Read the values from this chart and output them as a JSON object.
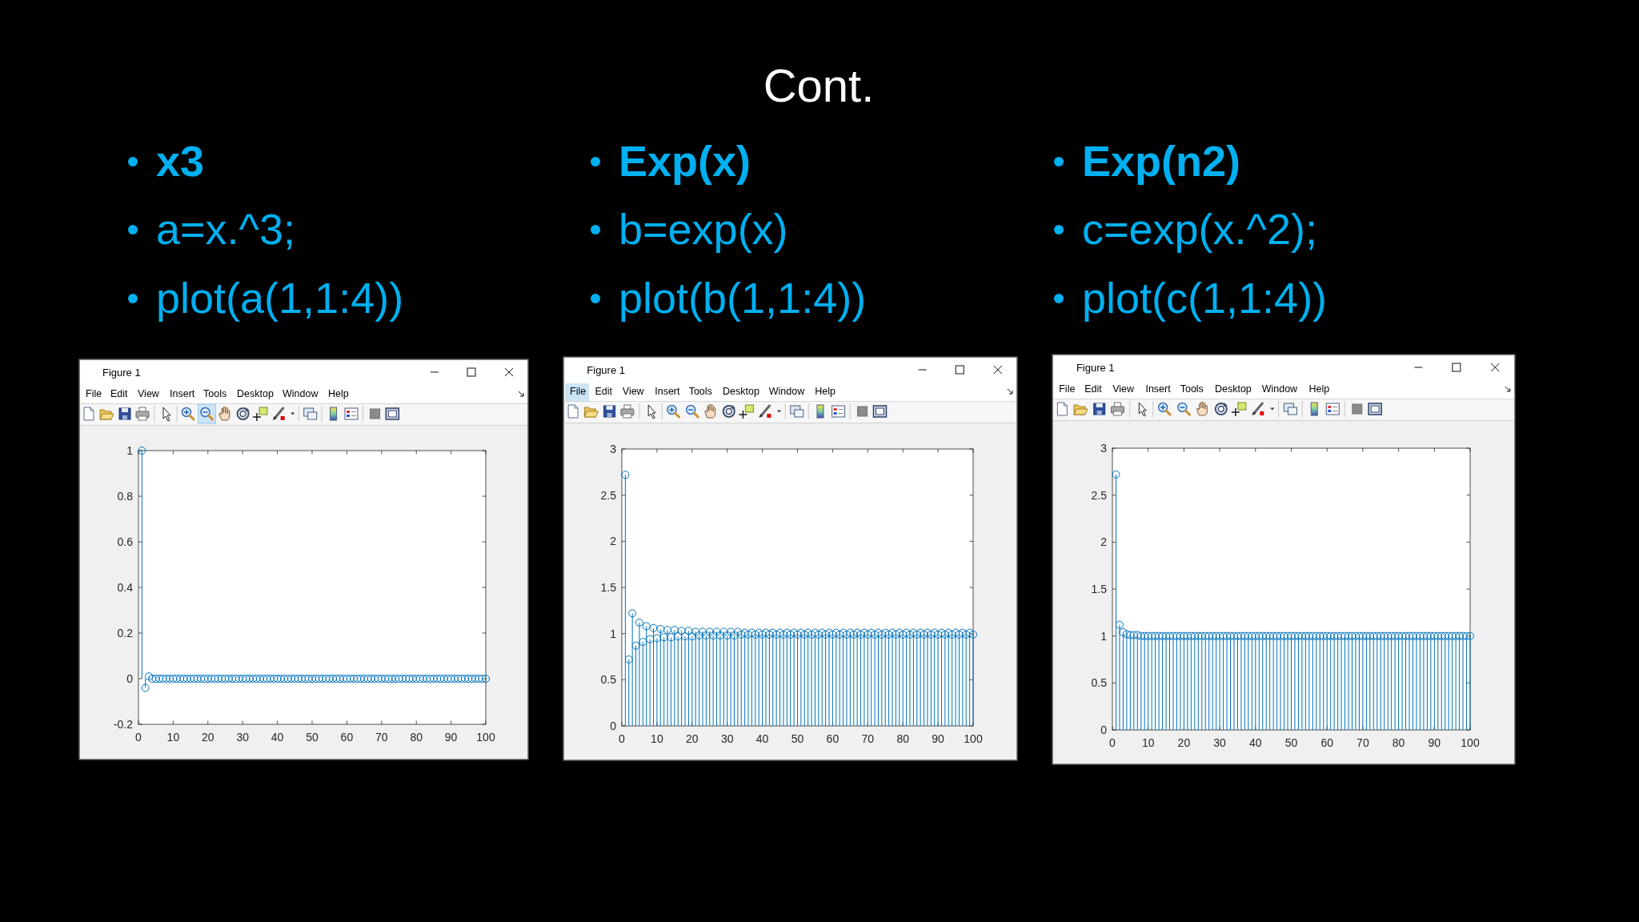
{
  "chart_data": [
    {
      "type": "other",
      "title": "Cont."
    },
    {
      "type": "lollipop",
      "title": "x3",
      "subtitle": "a=x.^3;",
      "annotations": [
        "plot(a(1,1:4))",
        "Figure 1",
        "File",
        "Edit",
        "View",
        "Insert",
        "Tools",
        "Desktop",
        "Window",
        "Help"
      ],
      "color": "#0072bd",
      "marker": "circle",
      "xlim": [
        0,
        100
      ],
      "xticks": [
        0,
        10,
        20,
        30,
        40,
        50,
        60,
        70,
        80,
        90,
        100
      ],
      "ylim": [
        -0.2,
        1
      ],
      "yticks": [
        -0.2,
        0,
        0.2,
        0.4,
        0.6,
        0.8,
        1
      ],
      "x": [
        1,
        2,
        3,
        4,
        5,
        6,
        7,
        8,
        9,
        10,
        11,
        12,
        13,
        14,
        15,
        16,
        17,
        18,
        19,
        20,
        21,
        22,
        23,
        24,
        25,
        26,
        27,
        28,
        29,
        30,
        31,
        32,
        33,
        34,
        35,
        36,
        37,
        38,
        39,
        40,
        41,
        42,
        43,
        44,
        45,
        46,
        47,
        48,
        49,
        50,
        51,
        52,
        53,
        54,
        55,
        56,
        57,
        58,
        59,
        60,
        61,
        62,
        63,
        64,
        65,
        66,
        67,
        68,
        69,
        70,
        71,
        72,
        73,
        74,
        75,
        76,
        77,
        78,
        79,
        80,
        81,
        82,
        83,
        84,
        85,
        86,
        87,
        88,
        89,
        90,
        91,
        92,
        93,
        94,
        95,
        96,
        97,
        98,
        99,
        100
      ],
      "values": [
        1,
        -0.04,
        0.01,
        0,
        0,
        0,
        0,
        0,
        0,
        0,
        0,
        0,
        0,
        0,
        0,
        0,
        0,
        0,
        0,
        0,
        0,
        0,
        0,
        0,
        0,
        0,
        0,
        0,
        0,
        0,
        0,
        0,
        0,
        0,
        0,
        0,
        0,
        0,
        0,
        0,
        0,
        0,
        0,
        0,
        0,
        0,
        0,
        0,
        0,
        0,
        0,
        0,
        0,
        0,
        0,
        0,
        0,
        0,
        0,
        0,
        0,
        0,
        0,
        0,
        0,
        0,
        0,
        0,
        0,
        0,
        0,
        0,
        0,
        0,
        0,
        0,
        0,
        0,
        0,
        0,
        0,
        0,
        0,
        0,
        0,
        0,
        0,
        0,
        0,
        0,
        0,
        0,
        0,
        0,
        0,
        0,
        0,
        0,
        0,
        0
      ]
    },
    {
      "type": "lollipop",
      "title": "Exp(x)",
      "subtitle": "b=exp(x)",
      "annotations": [
        "plot(b(1,1:4))",
        "Figure 1",
        "File",
        "Edit",
        "View",
        "Insert",
        "Tools",
        "Desktop",
        "Window",
        "Help"
      ],
      "color": "#0072bd",
      "marker": "circle",
      "xlim": [
        0,
        100
      ],
      "xticks": [
        0,
        10,
        20,
        30,
        40,
        50,
        60,
        70,
        80,
        90,
        100
      ],
      "ylim": [
        0,
        3
      ],
      "yticks": [
        0,
        0.5,
        1,
        1.5,
        2,
        2.5,
        3
      ],
      "x": [
        1,
        2,
        3,
        4,
        5,
        6,
        7,
        8,
        9,
        10,
        11,
        12,
        13,
        14,
        15,
        16,
        17,
        18,
        19,
        20,
        21,
        22,
        23,
        24,
        25,
        26,
        27,
        28,
        29,
        30,
        31,
        32,
        33,
        34,
        35,
        36,
        37,
        38,
        39,
        40,
        41,
        42,
        43,
        44,
        45,
        46,
        47,
        48,
        49,
        50,
        51,
        52,
        53,
        54,
        55,
        56,
        57,
        58,
        59,
        60,
        61,
        62,
        63,
        64,
        65,
        66,
        67,
        68,
        69,
        70,
        71,
        72,
        73,
        74,
        75,
        76,
        77,
        78,
        79,
        80,
        81,
        82,
        83,
        84,
        85,
        86,
        87,
        88,
        89,
        90,
        91,
        92,
        93,
        94,
        95,
        96,
        97,
        98,
        99,
        100
      ],
      "values": [
        2.72,
        0.72,
        1.22,
        0.87,
        1.12,
        0.91,
        1.08,
        0.94,
        1.06,
        0.95,
        1.05,
        0.96,
        1.04,
        0.96,
        1.04,
        0.97,
        1.03,
        0.97,
        1.03,
        0.97,
        1.02,
        0.98,
        1.02,
        0.98,
        1.02,
        0.98,
        1.02,
        0.98,
        1.02,
        0.98,
        1.02,
        0.98,
        1.02,
        0.99,
        1.01,
        0.99,
        1.01,
        0.99,
        1.01,
        0.99,
        1.01,
        0.99,
        1.01,
        0.99,
        1.01,
        0.99,
        1.01,
        0.99,
        1.01,
        0.99,
        1.01,
        0.99,
        1.01,
        0.99,
        1.01,
        0.99,
        1.01,
        0.99,
        1.01,
        0.99,
        1.01,
        0.99,
        1.01,
        0.99,
        1.01,
        0.99,
        1.01,
        0.99,
        1.01,
        0.99,
        1.01,
        0.99,
        1.01,
        0.99,
        1.01,
        0.99,
        1.01,
        0.99,
        1.01,
        0.99,
        1.01,
        0.99,
        1.01,
        0.99,
        1.01,
        0.99,
        1.01,
        0.99,
        1.01,
        0.99,
        1.01,
        0.99,
        1.01,
        0.99,
        1.01,
        0.99,
        1.01,
        0.99,
        1.01,
        0.99
      ]
    },
    {
      "type": "lollipop",
      "title": "Exp(n2)",
      "subtitle": "c=exp(x.^2);",
      "annotations": [
        "plot(c(1,1:4))",
        "Figure 1",
        "File",
        "Edit",
        "View",
        "Insert",
        "Tools",
        "Desktop",
        "Window",
        "Help"
      ],
      "color": "#0072bd",
      "marker": "circle",
      "xlim": [
        0,
        100
      ],
      "xticks": [
        0,
        10,
        20,
        30,
        40,
        50,
        60,
        70,
        80,
        90,
        100
      ],
      "ylim": [
        0,
        3
      ],
      "yticks": [
        0,
        0.5,
        1,
        1.5,
        2,
        2.5,
        3
      ],
      "x": [
        1,
        2,
        3,
        4,
        5,
        6,
        7,
        8,
        9,
        10,
        11,
        12,
        13,
        14,
        15,
        16,
        17,
        18,
        19,
        20,
        21,
        22,
        23,
        24,
        25,
        26,
        27,
        28,
        29,
        30,
        31,
        32,
        33,
        34,
        35,
        36,
        37,
        38,
        39,
        40,
        41,
        42,
        43,
        44,
        45,
        46,
        47,
        48,
        49,
        50,
        51,
        52,
        53,
        54,
        55,
        56,
        57,
        58,
        59,
        60,
        61,
        62,
        63,
        64,
        65,
        66,
        67,
        68,
        69,
        70,
        71,
        72,
        73,
        74,
        75,
        76,
        77,
        78,
        79,
        80,
        81,
        82,
        83,
        84,
        85,
        86,
        87,
        88,
        89,
        90,
        91,
        92,
        93,
        94,
        95,
        96,
        97,
        98,
        99,
        100
      ],
      "values": [
        2.72,
        1.12,
        1.04,
        1.02,
        1.01,
        1.01,
        1.01,
        1,
        1,
        1,
        1,
        1,
        1,
        1,
        1,
        1,
        1,
        1,
        1,
        1,
        1,
        1,
        1,
        1,
        1,
        1,
        1,
        1,
        1,
        1,
        1,
        1,
        1,
        1,
        1,
        1,
        1,
        1,
        1,
        1,
        1,
        1,
        1,
        1,
        1,
        1,
        1,
        1,
        1,
        1,
        1,
        1,
        1,
        1,
        1,
        1,
        1,
        1,
        1,
        1,
        1,
        1,
        1,
        1,
        1,
        1,
        1,
        1,
        1,
        1,
        1,
        1,
        1,
        1,
        1,
        1,
        1,
        1,
        1,
        1,
        1,
        1,
        1,
        1,
        1,
        1,
        1,
        1,
        1,
        1,
        1,
        1,
        1,
        1,
        1,
        1,
        1,
        1,
        1,
        1
      ]
    }
  ]
}
